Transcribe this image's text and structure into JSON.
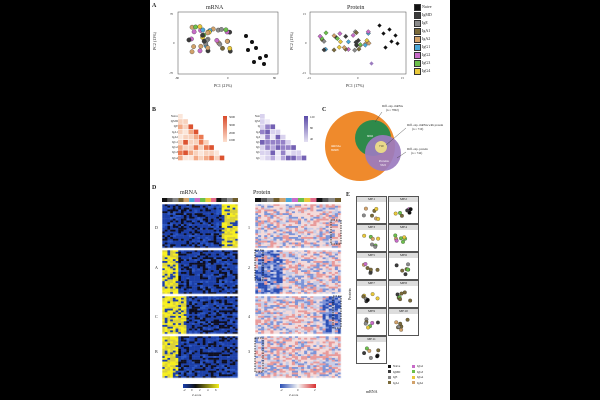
{
  "panel_letters": [
    "A",
    "B",
    "C",
    "D",
    "E"
  ],
  "panel_a": {
    "mrna_title": "mRNA",
    "protein_title": "Protein",
    "mrna_xlabel": "PC1 (21%)",
    "mrna_ylabel": "PC2 (13%)",
    "protein_xlabel": "PC1 (17%)",
    "protein_ylabel": "PC2 (13%)",
    "mrna_xticks": [
      "-80",
      "0",
      "80"
    ],
    "mrna_yticks": [
      "70",
      "0",
      "-70"
    ],
    "protein_xticks": [
      "-15",
      "0",
      "15"
    ],
    "protein_yticks": [
      "15",
      "0",
      "-15"
    ]
  },
  "legend_a": [
    {
      "label": "Naive",
      "color": "#111111"
    },
    {
      "label": "IgMD",
      "color": "#3b3b3b"
    },
    {
      "label": "IgE",
      "color": "#8a8a8a"
    },
    {
      "label": "IgA1",
      "color": "#7a6a3a"
    },
    {
      "label": "IgA2",
      "color": "#d2a26a"
    },
    {
      "label": "IgG1",
      "color": "#4aa8d8"
    },
    {
      "label": "IgG2",
      "color": "#c86bc8"
    },
    {
      "label": "IgG3",
      "color": "#6cbf4b"
    },
    {
      "label": "IgG4",
      "color": "#e8c83a"
    }
  ],
  "panel_b": {
    "row_labels": [
      "Naive",
      "IgMD",
      "IgE",
      "IgA1",
      "IgA2",
      "IgG1",
      "IgG2",
      "IgG3",
      "IgG4"
    ],
    "left_scale": [
      "2000",
      "1000",
      "3000",
      "5000"
    ],
    "right_scale": [
      "120",
      "80",
      "40"
    ]
  },
  "panel_c": {
    "labels": {
      "diff_mrna": "Diff. exp. mRNA",
      "diff_mrna_n": "(n = 7802)",
      "diff_both": "Diff. exp. mRNA with protein",
      "diff_both_n": "(n = 710)",
      "diff_protein": "Diff. exp. protein",
      "diff_protein_n": "(n = 742)",
      "big_orange": "mRNAs",
      "big_orange_n": "69668",
      "center": "6092",
      "overlap": "710",
      "protein": "Proteins",
      "protein_n": "3322"
    }
  },
  "panel_d": {
    "mrna_title": "mRNA",
    "protein_title": "Protein",
    "mrna_cluster_labels": [
      "D",
      "A",
      "C",
      "B"
    ],
    "protein_cluster_labels": [
      "1",
      "2",
      "4",
      "3"
    ],
    "mrna_scale": [
      "-2",
      "0",
      "2",
      "4",
      "6"
    ],
    "protein_scale": [
      "-2",
      "0",
      "2"
    ],
    "scale_caption": "Z-score"
  },
  "panel_e": {
    "modules": [
      "ME1",
      "ME2",
      "ME3",
      "ME4",
      "ME5",
      "ME6",
      "ME7",
      "ME8",
      "ME9",
      "ME10",
      "ME11"
    ],
    "ylabel": "Protein",
    "xlabel": "mRNA",
    "legend": [
      {
        "label": "Naive",
        "color": "#111111"
      },
      {
        "label": "IgG2",
        "color": "#c86bc8"
      },
      {
        "label": "IgMD",
        "color": "#3b3b3b"
      },
      {
        "label": "IgG3",
        "color": "#6cbf4b"
      },
      {
        "label": "IgE",
        "color": "#8a8a8a"
      },
      {
        "label": "IgG4",
        "color": "#e8c83a"
      },
      {
        "label": "IgA1",
        "color": "#7a6a3a"
      },
      {
        "label": "IgA2",
        "color": "#d2a26a"
      }
    ]
  }
}
